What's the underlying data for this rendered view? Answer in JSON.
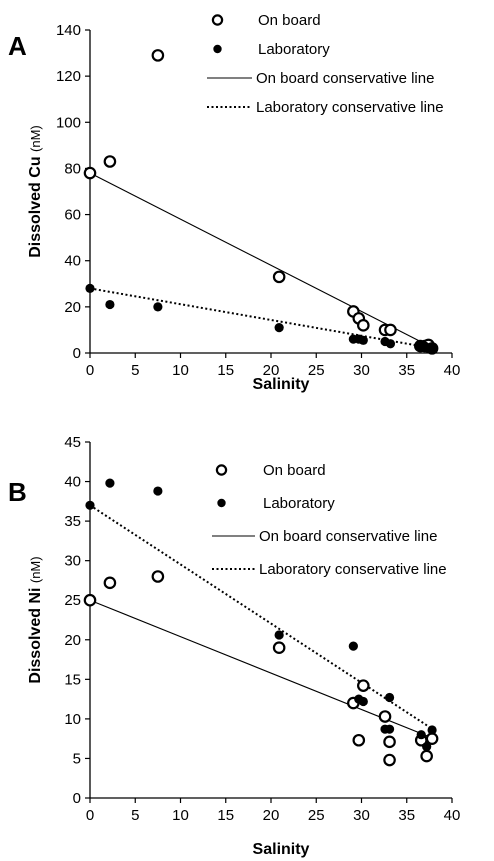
{
  "chart_data": [
    {
      "type": "scatter",
      "panel_label": "A",
      "xlabel": "Salinity",
      "ylabel": "Dissolved Cu",
      "ylabel_unit": "(nM)",
      "xlim": [
        0,
        40
      ],
      "ylim": [
        0,
        140
      ],
      "xticks": [
        0,
        5,
        10,
        15,
        20,
        25,
        30,
        35,
        40
      ],
      "yticks": [
        0,
        20,
        40,
        60,
        80,
        100,
        120,
        140
      ],
      "legend_position": "top-right",
      "series": [
        {
          "name": "On board",
          "kind": "points",
          "marker": "open-circle",
          "points": [
            [
              0,
              78
            ],
            [
              2.2,
              83
            ],
            [
              7.5,
              129
            ],
            [
              20.9,
              33
            ],
            [
              29.1,
              18
            ],
            [
              29.7,
              15
            ],
            [
              30.2,
              12
            ],
            [
              32.6,
              10
            ],
            [
              33.2,
              10
            ],
            [
              36.5,
              3
            ],
            [
              37,
              3
            ],
            [
              37.4,
              3.5
            ],
            [
              37.8,
              2
            ]
          ]
        },
        {
          "name": "Laboratory",
          "kind": "points",
          "marker": "filled-circle",
          "points": [
            [
              0,
              28
            ],
            [
              2.2,
              21
            ],
            [
              7.5,
              20
            ],
            [
              20.9,
              11
            ],
            [
              29.1,
              6
            ],
            [
              29.7,
              6
            ],
            [
              30.2,
              5.5
            ],
            [
              32.6,
              5
            ],
            [
              33.2,
              4
            ],
            [
              36.5,
              3
            ],
            [
              37,
              3
            ],
            [
              37.4,
              2
            ],
            [
              37.8,
              2
            ]
          ]
        },
        {
          "name": "On board conservative line",
          "kind": "line",
          "style": "solid",
          "points": [
            [
              0,
              78
            ],
            [
              38,
              2
            ]
          ]
        },
        {
          "name": "Laboratory conservative line",
          "kind": "line",
          "style": "dotted",
          "points": [
            [
              0,
              28
            ],
            [
              38,
              2
            ]
          ]
        }
      ]
    },
    {
      "type": "scatter",
      "panel_label": "B",
      "xlabel": "Salinity",
      "ylabel": "Dissolved Ni",
      "ylabel_unit": "(nM)",
      "xlim": [
        0,
        40
      ],
      "ylim": [
        0,
        45
      ],
      "xticks": [
        0,
        5,
        10,
        15,
        20,
        25,
        30,
        35,
        40
      ],
      "yticks": [
        0,
        5,
        10,
        15,
        20,
        25,
        30,
        35,
        40,
        45
      ],
      "legend_position": "top-right",
      "series": [
        {
          "name": "On board",
          "kind": "points",
          "marker": "open-circle",
          "points": [
            [
              0,
              25
            ],
            [
              2.2,
              27.2
            ],
            [
              7.5,
              28
            ],
            [
              20.9,
              19
            ],
            [
              29.1,
              12
            ],
            [
              29.7,
              7.3
            ],
            [
              30.2,
              14.2
            ],
            [
              32.6,
              10.3
            ],
            [
              33.1,
              7.1
            ],
            [
              33.1,
              4.8
            ],
            [
              36.6,
              7.3
            ],
            [
              37.2,
              5.3
            ],
            [
              37.8,
              7.5
            ]
          ]
        },
        {
          "name": "Laboratory",
          "kind": "points",
          "marker": "filled-circle",
          "points": [
            [
              0,
              37
            ],
            [
              2.2,
              39.8
            ],
            [
              7.5,
              38.8
            ],
            [
              20.9,
              20.6
            ],
            [
              29.1,
              19.2
            ],
            [
              29.7,
              12.5
            ],
            [
              30.2,
              12.2
            ],
            [
              32.6,
              8.7
            ],
            [
              33.1,
              12.7
            ],
            [
              33.1,
              8.7
            ],
            [
              36.6,
              8
            ],
            [
              37.2,
              6.5
            ],
            [
              37.8,
              8.6
            ]
          ]
        },
        {
          "name": "On board conservative line",
          "kind": "line",
          "style": "solid",
          "points": [
            [
              0,
              25
            ],
            [
              38,
              7.5
            ]
          ]
        },
        {
          "name": "Laboratory conservative line",
          "kind": "line",
          "style": "dotted",
          "points": [
            [
              0,
              37
            ],
            [
              38,
              8.6
            ]
          ]
        }
      ]
    }
  ]
}
